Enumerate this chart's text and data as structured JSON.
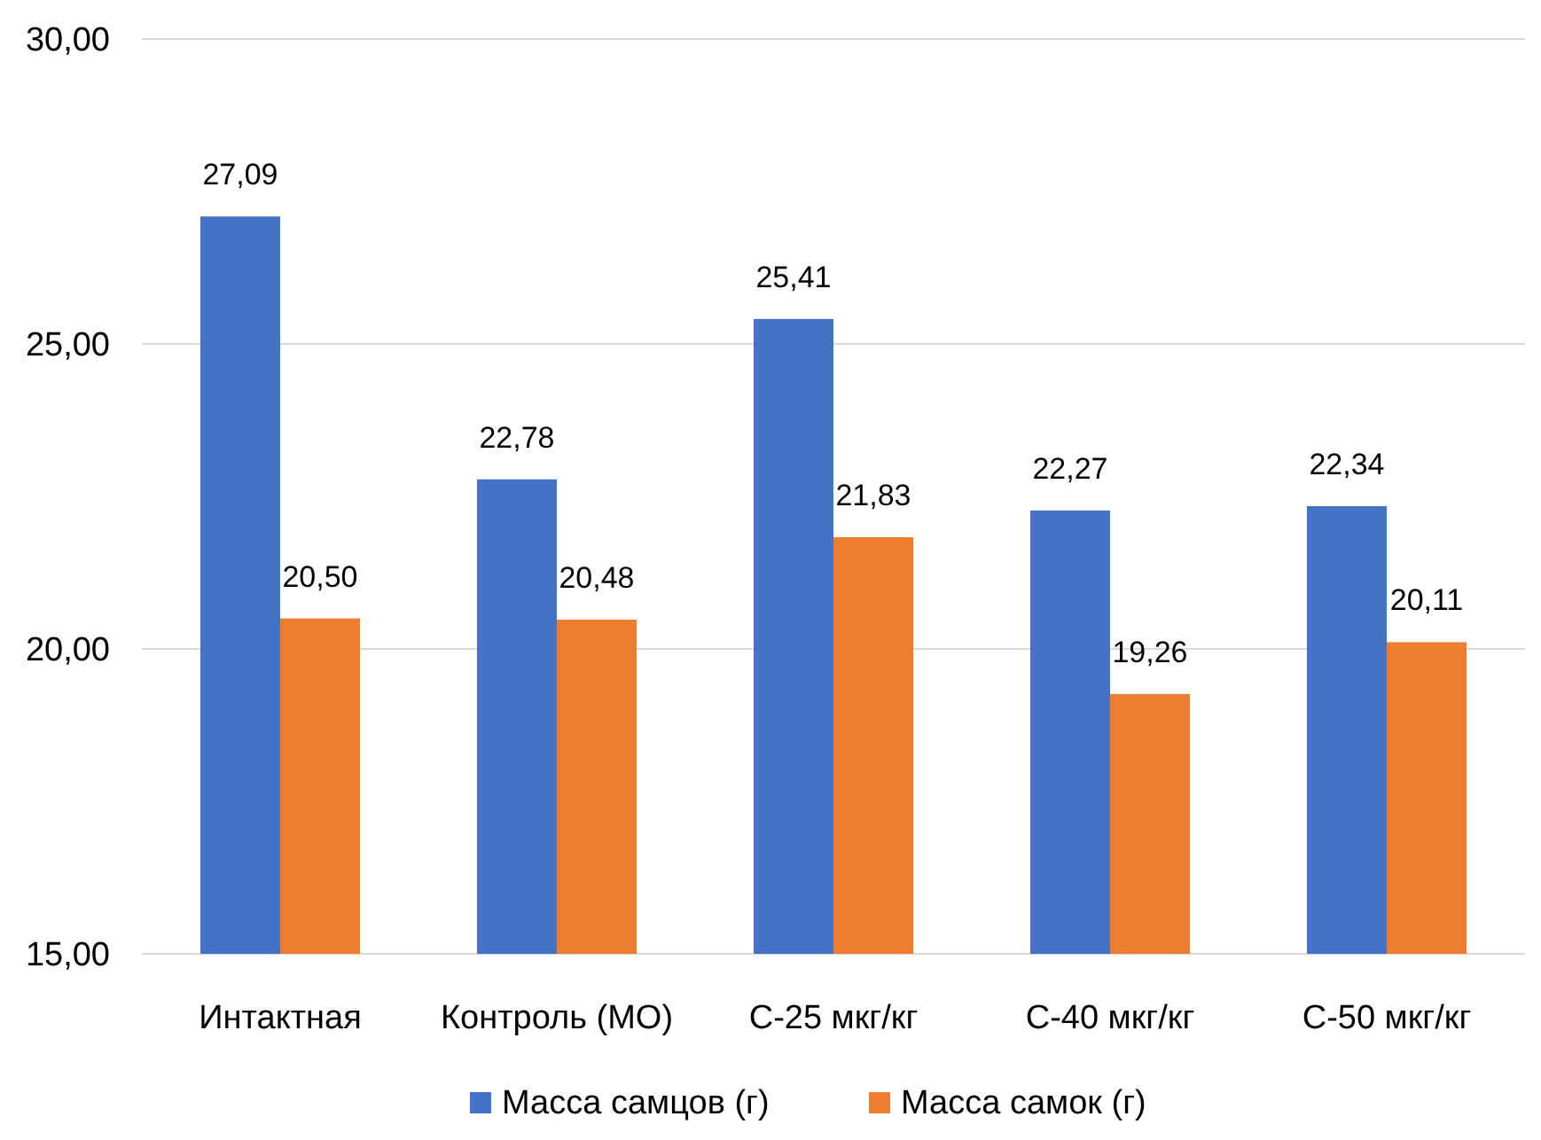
{
  "chart_data": {
    "type": "bar",
    "categories": [
      "Интактная",
      "Контроль (МО)",
      "С-25 мкг/кг",
      "С-40 мкг/кг",
      "С-50 мкг/кг"
    ],
    "series": [
      {
        "name": "Масса самцов (г)",
        "color": "#4472c4",
        "values": [
          27.09,
          22.78,
          25.41,
          22.27,
          22.34
        ],
        "value_labels": [
          "27,09",
          "22,78",
          "25,41",
          "22,27",
          "22,34"
        ]
      },
      {
        "name": "Масса самок (г)",
        "color": "#ed7d31",
        "values": [
          20.5,
          20.48,
          21.83,
          19.26,
          20.11
        ],
        "value_labels": [
          "20,50",
          "20,48",
          "21,83",
          "19,26",
          "20,11"
        ]
      }
    ],
    "ylim": [
      15,
      30
    ],
    "yticks": [
      {
        "value": 15,
        "label": "15,00"
      },
      {
        "value": 20,
        "label": "20,00"
      },
      {
        "value": 25,
        "label": "25,00"
      },
      {
        "value": 30,
        "label": "30,00"
      }
    ],
    "grid": "y",
    "legend": "bottom"
  }
}
